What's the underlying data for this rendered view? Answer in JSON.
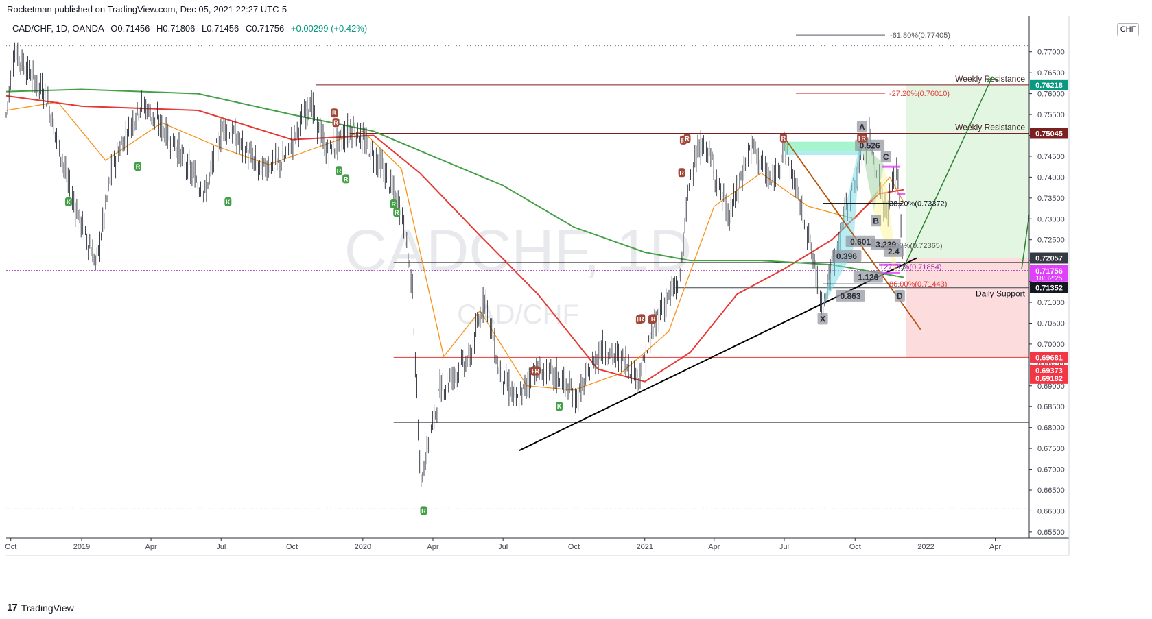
{
  "header": {
    "published_by": "Rocketman published on TradingView.com, Dec 05, 2021 22:27 UTC-5"
  },
  "legend": {
    "symbol": "CAD/CHF, 1D, OANDA",
    "open": "O0.71456",
    "high": "H0.71806",
    "low": "L0.71456",
    "close": "C0.71756",
    "change": "+0.00299 (+0.42%)"
  },
  "currency_badge": "CHF",
  "watermark": {
    "symbol": "CADCHF, 1D",
    "pair": "CAD/CHF"
  },
  "brand": {
    "logo": "17",
    "name": "TradingView"
  },
  "colors": {
    "ema_orange": "#f7931a",
    "sma_red": "#e53935",
    "sma_green": "#43a047",
    "resistance_line": "#7b1f1f",
    "support_line": "#000000",
    "green_zone": "#d8f3d8",
    "red_zone": "#fbd3d3",
    "projection_arrow": "#2e7d32",
    "dotted_magenta": "#9c27b0"
  },
  "chart_data": {
    "type": "line",
    "title": "",
    "xlabel": "",
    "ylabel": "",
    "ylim": [
      0.6535,
      0.7785
    ],
    "x_ticks": [
      "Oct",
      "2019",
      "Apr",
      "Jul",
      "Oct",
      "2020",
      "Apr",
      "Jul",
      "Oct",
      "2021",
      "Apr",
      "Jul",
      "Oct",
      "2022",
      "Apr"
    ],
    "y_ticks": [
      "0.77000",
      "0.76500",
      "0.76000",
      "0.75500",
      "0.75000",
      "0.74500",
      "0.74000",
      "0.73500",
      "0.73000",
      "0.72500",
      "0.72000",
      "0.71500",
      "0.71000",
      "0.70500",
      "0.70000",
      "0.69500",
      "0.69000",
      "0.68500",
      "0.68000",
      "0.67500",
      "0.67000",
      "0.66500",
      "0.66000",
      "0.65500"
    ],
    "price_path": {
      "x": [
        "2018-09-25",
        "2018-10-05",
        "2018-11-15",
        "2018-12-20",
        "2019-01-20",
        "2019-02-10",
        "2019-03-20",
        "2019-05-01",
        "2019-06-10",
        "2019-07-05",
        "2019-08-20",
        "2019-09-20",
        "2019-10-25",
        "2019-11-15",
        "2019-12-20",
        "2020-01-25",
        "2020-02-20",
        "2020-03-05",
        "2020-03-16",
        "2020-03-22",
        "2020-04-10",
        "2020-05-20",
        "2020-06-08",
        "2020-06-25",
        "2020-07-20",
        "2020-08-10",
        "2020-09-10",
        "2020-10-05",
        "2020-11-05",
        "2020-12-05",
        "2020-12-25",
        "2021-01-20",
        "2021-02-15",
        "2021-03-01",
        "2021-03-20",
        "2021-04-20",
        "2021-05-20",
        "2021-06-15",
        "2021-07-01",
        "2021-07-30",
        "2021-08-20",
        "2021-09-20",
        "2021-10-20",
        "2021-11-10",
        "2021-11-25",
        "2021-12-03"
      ],
      "y": [
        0.755,
        0.77,
        0.76,
        0.735,
        0.719,
        0.743,
        0.758,
        0.748,
        0.736,
        0.753,
        0.742,
        0.744,
        0.758,
        0.746,
        0.752,
        0.743,
        0.732,
        0.715,
        0.666,
        0.672,
        0.689,
        0.697,
        0.712,
        0.694,
        0.686,
        0.694,
        0.692,
        0.687,
        0.699,
        0.696,
        0.692,
        0.708,
        0.715,
        0.741,
        0.749,
        0.73,
        0.748,
        0.738,
        0.748,
        0.728,
        0.709,
        0.733,
        0.75,
        0.731,
        0.742,
        0.7176
      ]
    },
    "series": [
      {
        "name": "",
        "color": "#f7931a",
        "x": [
          "2018-09-25",
          "2018-12-01",
          "2019-02-01",
          "2019-04-15",
          "2019-07-01",
          "2019-09-01",
          "2019-11-01",
          "2020-01-01",
          "2020-02-20",
          "2020-04-15",
          "2020-06-01",
          "2020-08-01",
          "2020-10-01",
          "2020-12-01",
          "2021-02-01",
          "2021-04-01",
          "2021-06-01",
          "2021-08-01",
          "2021-10-01",
          "2021-11-15",
          "2021-12-03"
        ],
        "y": [
          0.756,
          0.758,
          0.744,
          0.753,
          0.747,
          0.743,
          0.747,
          0.751,
          0.742,
          0.697,
          0.708,
          0.69,
          0.689,
          0.693,
          0.703,
          0.733,
          0.741,
          0.733,
          0.73,
          0.74,
          0.734
        ]
      },
      {
        "name": "",
        "color": "#e53935",
        "x": [
          "2018-09-25",
          "2019-01-01",
          "2019-06-01",
          "2019-10-01",
          "2020-01-15",
          "2020-03-15",
          "2020-06-01",
          "2020-08-15",
          "2020-11-01",
          "2021-01-01",
          "2021-03-01",
          "2021-05-01",
          "2021-07-01",
          "2021-09-01",
          "2021-11-01",
          "2021-12-03"
        ],
        "y": [
          0.7595,
          0.757,
          0.756,
          0.749,
          0.75,
          0.741,
          0.726,
          0.712,
          0.694,
          0.691,
          0.698,
          0.712,
          0.718,
          0.725,
          0.736,
          0.737
        ]
      },
      {
        "name": "",
        "color": "#43a047",
        "x": [
          "2018-09-25",
          "2019-01-01",
          "2019-06-01",
          "2019-10-01",
          "2020-01-15",
          "2020-04-01",
          "2020-07-01",
          "2020-10-01",
          "2021-01-01",
          "2021-03-01",
          "2021-06-01",
          "2021-09-01",
          "2021-12-03"
        ],
        "y": [
          0.7605,
          0.761,
          0.76,
          0.755,
          0.751,
          0.745,
          0.738,
          0.728,
          0.722,
          0.72,
          0.72,
          0.719,
          0.716
        ]
      }
    ],
    "horizontal_levels": [
      {
        "value": 0.7621,
        "label": "Weekly Resistance",
        "badge": "0.76218",
        "badge_color": "#089981"
      },
      {
        "value": 0.7505,
        "label": "Weekly Resistance",
        "badge": "0.75045",
        "badge_color": "#7b1f1f"
      },
      {
        "value": 0.7135,
        "label": "Daily Support",
        "badge": "0.71352",
        "badge_color": "#131722"
      },
      {
        "value": 0.7206,
        "label": "",
        "badge": "0.72057",
        "badge_color": "#363a45"
      },
      {
        "value": 0.7176,
        "label": "",
        "badge": "0.71756",
        "badge_time": "18:32:25",
        "badge_color": "#e040fb"
      },
      {
        "value": 0.6968,
        "label": "",
        "badge": "0.69681",
        "badge_color": "#f23645"
      },
      {
        "value": 0.6937,
        "label": "",
        "badge": "0.69373",
        "badge_color": "#f23645"
      },
      {
        "value": 0.6918,
        "label": "",
        "badge": "0.69182",
        "badge_color": "#f23645"
      }
    ],
    "fib_labels": [
      {
        "value": 0.77405,
        "text": "-61.80%(0.77405)"
      },
      {
        "value": 0.7601,
        "text": "-27.20%(0.76010)"
      },
      {
        "value": 0.73372,
        "text": "38.20%(0.73372)"
      },
      {
        "value": 0.72365,
        "text": "100.00%(0.72365)"
      },
      {
        "value": 0.71854,
        "text": "127.20%(0.71854)"
      },
      {
        "value": 0.71443,
        "text": "86.00%(0.71443)"
      }
    ],
    "harmonic_labels": [
      "A",
      "B",
      "C",
      "D",
      "X",
      "0.526",
      "0.601",
      "0.396",
      "1.126",
      "0.863",
      "3.239",
      "2.4"
    ],
    "signal_markers": {
      "R": 14,
      "K": 3
    },
    "grid": false,
    "legend_position": "top-left"
  }
}
